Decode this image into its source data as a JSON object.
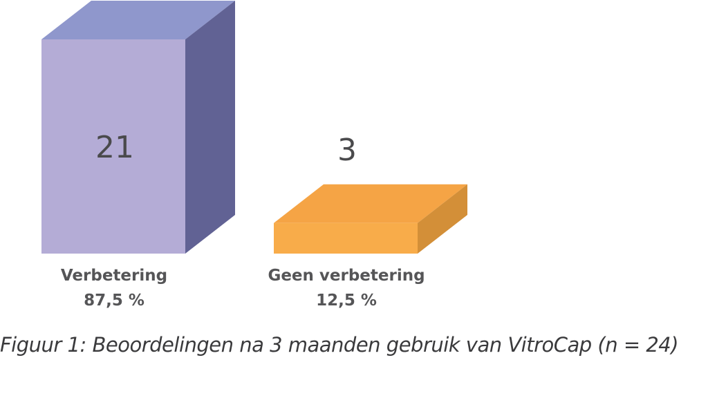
{
  "chart_data": {
    "type": "bar",
    "categories": [
      "Verbetering",
      "Geen verbetering"
    ],
    "values": [
      21,
      3
    ],
    "value_labels": [
      "21",
      "3"
    ],
    "percent_labels": [
      "87,5 %",
      "12,5 %"
    ],
    "colors": [
      {
        "front": "#b4acd6",
        "top": "#8f97cc",
        "side": "#616294"
      },
      {
        "front": "#f8ac4a",
        "top": "#f5a445",
        "side": "#d38f38"
      }
    ],
    "ylim": [
      0,
      21
    ]
  },
  "caption": "Figuur 1: Beoordelingen na 3 maanden gebruik van VitroCap (n = 24)"
}
